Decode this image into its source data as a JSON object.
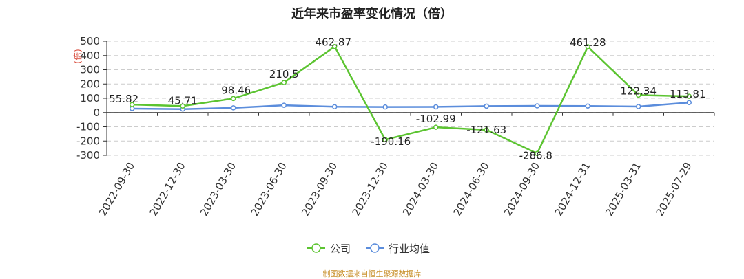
{
  "title": "近年来市盈率变化情况（倍）",
  "source": "制图数据来自恒生聚源数据库",
  "chart_data": {
    "type": "line",
    "title": "近年来市盈率变化情况（倍）",
    "ylabel": "(倍)",
    "xlabel": "",
    "ylim": [
      -300,
      500
    ],
    "yticks": [
      500,
      400,
      300,
      200,
      100,
      0,
      -100,
      -200,
      -300
    ],
    "grid": true,
    "legend_position": "bottom",
    "categories": [
      "2022-09-30",
      "2022-12-30",
      "2023-03-30",
      "2023-06-30",
      "2023-09-30",
      "2023-12-30",
      "2024-03-30",
      "2024-06-30",
      "2024-09-30",
      "2024-12-31",
      "2025-03-31",
      "2025-07-29"
    ],
    "series": [
      {
        "name": "公司",
        "color": "#5cc431",
        "values": [
          55.82,
          45.71,
          98.46,
          210.5,
          462.87,
          -190.16,
          -102.99,
          -121.63,
          -286.8,
          461.28,
          122.34,
          113.81
        ],
        "labels": [
          "55.82",
          "45.71",
          "98.46",
          "210.5",
          "462.87",
          "-190.16",
          "-102.99",
          "-121.63",
          "-286.8",
          "461.28",
          "122.34",
          "113.81"
        ]
      },
      {
        "name": "行业均值",
        "color": "#5b8ddc",
        "values": [
          28,
          24,
          33,
          51,
          41,
          39,
          40,
          45,
          47,
          46,
          42,
          70
        ]
      }
    ]
  }
}
